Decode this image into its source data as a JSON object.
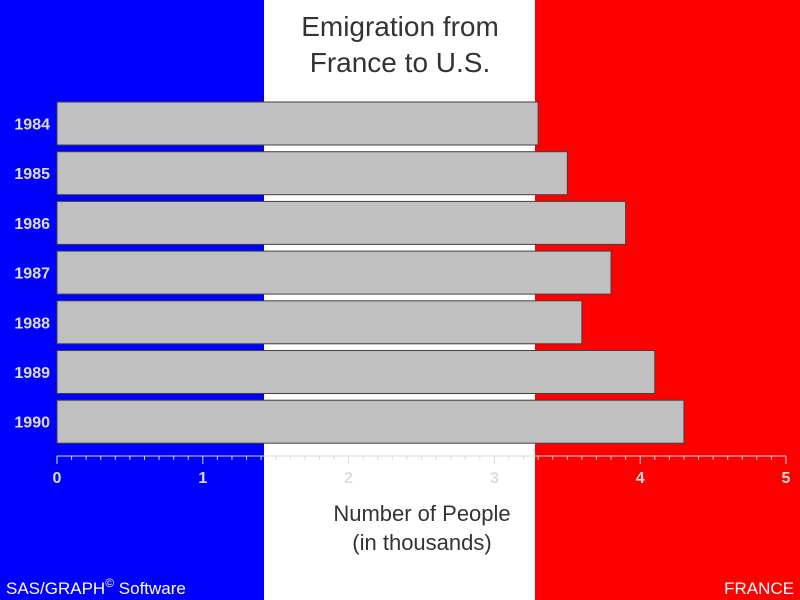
{
  "colors": {
    "flag_blue": "#0000ff",
    "flag_white": "#ffffff",
    "flag_red": "#ff0000",
    "bar_fill": "#c0c0c0",
    "bar_stroke": "#404040",
    "title_text": "#333333",
    "axis_text": "#dddddd",
    "footer_text": "#ffffff"
  },
  "chart_data": {
    "type": "bar",
    "orientation": "horizontal",
    "title_lines": [
      "Emigration from",
      "France to U.S."
    ],
    "categories": [
      "1984",
      "1985",
      "1986",
      "1987",
      "1988",
      "1989",
      "1990"
    ],
    "values": [
      3.3,
      3.5,
      3.9,
      3.8,
      3.6,
      4.1,
      4.3
    ],
    "xlabel_lines": [
      "Number of People",
      "(in thousands)"
    ],
    "xlim": [
      0,
      5
    ],
    "x_ticks": [
      "0",
      "1",
      "2",
      "3",
      "4",
      "5"
    ],
    "grid": false,
    "background": "French flag (blue / white / red vertical stripes)"
  },
  "footer": {
    "left_text": "SAS/GRAPH",
    "left_superscript": "©",
    "left_suffix": " Software",
    "right_text": "FRANCE"
  }
}
